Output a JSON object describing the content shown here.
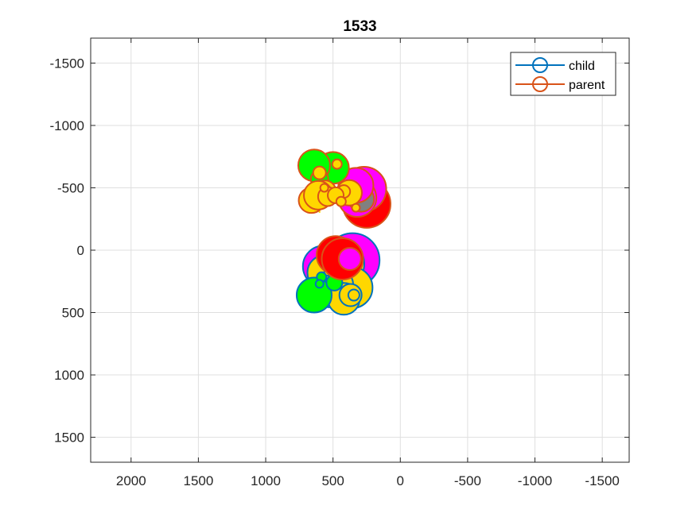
{
  "chart_data": {
    "type": "scatter",
    "title": "1533",
    "xlabel": "",
    "ylabel": "",
    "x_reversed": true,
    "y_reversed": true,
    "xlim": [
      2300,
      -1700
    ],
    "ylim": [
      -1700,
      1700
    ],
    "xticks": [
      2000,
      1500,
      1000,
      500,
      0,
      -500,
      -1000,
      -1500
    ],
    "yticks": [
      -1500,
      -1000,
      -500,
      0,
      500,
      1000,
      1500
    ],
    "xtick_labels": [
      "2000",
      "1500",
      "1000",
      "500",
      "0",
      "-500",
      "-1000",
      "-1500"
    ],
    "ytick_labels": [
      "-1500",
      "-1000",
      "-500",
      "0",
      "500",
      "1000",
      "1500"
    ],
    "grid": true,
    "legend": {
      "placement": "top-right",
      "entries": [
        {
          "label": "child",
          "color": "#0072BD"
        },
        {
          "label": "parent",
          "color": "#D95319"
        }
      ]
    },
    "series": [
      {
        "name": "child",
        "edge_color": "#0072BD",
        "points": [
          {
            "x": 430,
            "y": 100,
            "r": 32,
            "fill": "#FF00FF"
          },
          {
            "x": 355,
            "y": 80,
            "r": 34,
            "fill": "#FF00FF"
          },
          {
            "x": 570,
            "y": 130,
            "r": 26,
            "fill": "#FF00FF"
          },
          {
            "x": 445,
            "y": 110,
            "r": 30,
            "fill": "#FFD700"
          },
          {
            "x": 500,
            "y": 230,
            "r": 28,
            "fill": "#FFD700"
          },
          {
            "x": 460,
            "y": 170,
            "r": 24,
            "fill": "#FFD700"
          },
          {
            "x": 560,
            "y": 180,
            "r": 22,
            "fill": "#FFD700"
          },
          {
            "x": 400,
            "y": 280,
            "r": 20,
            "fill": "#FFD700"
          },
          {
            "x": 360,
            "y": 300,
            "r": 26,
            "fill": "#FFD700"
          },
          {
            "x": 480,
            "y": 280,
            "r": 22,
            "fill": "#FFD700"
          },
          {
            "x": 530,
            "y": 330,
            "r": 20,
            "fill": "#FFD700"
          },
          {
            "x": 420,
            "y": 390,
            "r": 20,
            "fill": "#FFD700"
          },
          {
            "x": 370,
            "y": 360,
            "r": 14,
            "fill": "#FFD700"
          },
          {
            "x": 345,
            "y": 360,
            "r": 7,
            "fill": "#FFD700"
          },
          {
            "x": 640,
            "y": 360,
            "r": 22,
            "fill": "#00FF00"
          },
          {
            "x": 490,
            "y": 260,
            "r": 10,
            "fill": "#00FF00"
          },
          {
            "x": 585,
            "y": 215,
            "r": 6,
            "fill": "#00FF00"
          },
          {
            "x": 600,
            "y": 270,
            "r": 5,
            "fill": "#00FF00"
          },
          {
            "x": 430,
            "y": 50,
            "r": 3,
            "fill": "#FFD700"
          },
          {
            "x": 370,
            "y": 30,
            "r": 4,
            "fill": "#FFD700"
          },
          {
            "x": 520,
            "y": 60,
            "r": 14,
            "fill": "#00FF00"
          }
        ]
      },
      {
        "name": "parent",
        "edge_color": "#D95319",
        "points": [
          {
            "x": 250,
            "y": -370,
            "r": 30,
            "fill": "#FF0000"
          },
          {
            "x": 270,
            "y": -490,
            "r": 28,
            "fill": "#FF00FF"
          },
          {
            "x": 320,
            "y": -420,
            "r": 24,
            "fill": "#FF00FF"
          },
          {
            "x": 290,
            "y": -410,
            "r": 16,
            "fill": "#808080"
          },
          {
            "x": 330,
            "y": -520,
            "r": 22,
            "fill": "#FF00FF"
          },
          {
            "x": 500,
            "y": -660,
            "r": 20,
            "fill": "#00FF00"
          },
          {
            "x": 640,
            "y": -680,
            "r": 20,
            "fill": "#00FF00"
          },
          {
            "x": 600,
            "y": -570,
            "r": 11,
            "fill": "#00FF00"
          },
          {
            "x": 600,
            "y": -620,
            "r": 8,
            "fill": "#FFD700"
          },
          {
            "x": 470,
            "y": -690,
            "r": 6,
            "fill": "#FFD700"
          },
          {
            "x": 660,
            "y": -400,
            "r": 16,
            "fill": "#FFD700"
          },
          {
            "x": 560,
            "y": -470,
            "r": 14,
            "fill": "#FFD700"
          },
          {
            "x": 610,
            "y": -440,
            "r": 18,
            "fill": "#FFD700"
          },
          {
            "x": 380,
            "y": -460,
            "r": 16,
            "fill": "#FFD700"
          },
          {
            "x": 540,
            "y": -430,
            "r": 12,
            "fill": "#FFD700"
          },
          {
            "x": 420,
            "y": -470,
            "r": 8,
            "fill": "#FFD700"
          },
          {
            "x": 565,
            "y": -500,
            "r": 5,
            "fill": "#FFD700"
          },
          {
            "x": 480,
            "y": -440,
            "r": 10,
            "fill": "#FFD700"
          },
          {
            "x": 440,
            "y": -390,
            "r": 6,
            "fill": "#FFD700"
          },
          {
            "x": 330,
            "y": -340,
            "r": 5,
            "fill": "#FFD700"
          },
          {
            "x": 480,
            "y": 40,
            "r": 24,
            "fill": "#FF0000"
          },
          {
            "x": 430,
            "y": 70,
            "r": 26,
            "fill": "#FF0000"
          },
          {
            "x": 375,
            "y": 70,
            "r": 14,
            "fill": "#FF00FF"
          }
        ]
      }
    ],
    "segments": [
      {
        "x1": 600,
        "y1": -570,
        "x2": 600,
        "y2": -300,
        "color": "#FFD700"
      },
      {
        "x1": 640,
        "y1": -380,
        "x2": 640,
        "y2": -300,
        "color": "#00FF00"
      },
      {
        "x1": 640,
        "y1": -680,
        "x2": 600,
        "y2": -570,
        "color": "#D95319"
      }
    ]
  }
}
